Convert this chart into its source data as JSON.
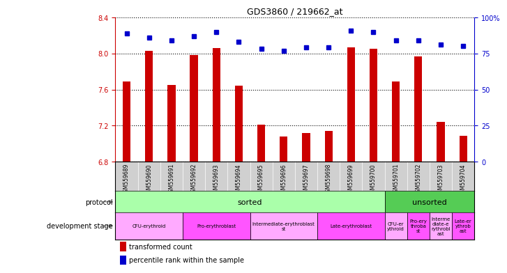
{
  "title": "GDS3860 / 219662_at",
  "samples": [
    "GSM559689",
    "GSM559690",
    "GSM559691",
    "GSM559692",
    "GSM559693",
    "GSM559694",
    "GSM559695",
    "GSM559696",
    "GSM559697",
    "GSM559698",
    "GSM559699",
    "GSM559700",
    "GSM559701",
    "GSM559702",
    "GSM559703",
    "GSM559704"
  ],
  "bar_values": [
    7.69,
    8.03,
    7.65,
    7.98,
    8.06,
    7.64,
    7.21,
    7.08,
    7.12,
    7.14,
    8.07,
    8.05,
    7.69,
    7.97,
    7.24,
    7.09
  ],
  "dot_values": [
    89,
    86,
    84,
    87,
    90,
    83,
    78,
    77,
    79,
    79,
    91,
    90,
    84,
    84,
    81,
    80
  ],
  "ylim": [
    6.8,
    8.4
  ],
  "yticks": [
    6.8,
    7.2,
    7.6,
    8.0,
    8.4
  ],
  "right_yticks": [
    0,
    25,
    50,
    75,
    100
  ],
  "right_ylim": [
    0,
    100
  ],
  "bar_color": "#cc0000",
  "dot_color": "#0000cc",
  "background_color": "#ffffff",
  "plot_bg_color": "#ffffff",
  "xtick_bg_color": "#d0d0d0",
  "protocol_sorted_color": "#aaffaa",
  "protocol_unsorted_color": "#55cc55",
  "protocol_sorted_count": 12,
  "protocol_unsorted_count": 4,
  "dev_stages": [
    {
      "label": "CFU-erythroid",
      "count": 3,
      "color": "#ffaaff"
    },
    {
      "label": "Pro-erythroblast",
      "count": 3,
      "color": "#ff55ff"
    },
    {
      "label": "Intermediate-erythroblast\nst",
      "count": 3,
      "color": "#ffaaff"
    },
    {
      "label": "Late-erythroblast",
      "count": 3,
      "color": "#ff55ff"
    },
    {
      "label": "CFU-er\nythroid",
      "count": 1,
      "color": "#ffaaff"
    },
    {
      "label": "Pro-ery\nthroba\nst",
      "count": 1,
      "color": "#ff55ff"
    },
    {
      "label": "Interme\ndiate-e\nrythrobl\nast",
      "count": 1,
      "color": "#ffaaff"
    },
    {
      "label": "Late-er\nythrob\nast",
      "count": 1,
      "color": "#ff55ff"
    }
  ]
}
